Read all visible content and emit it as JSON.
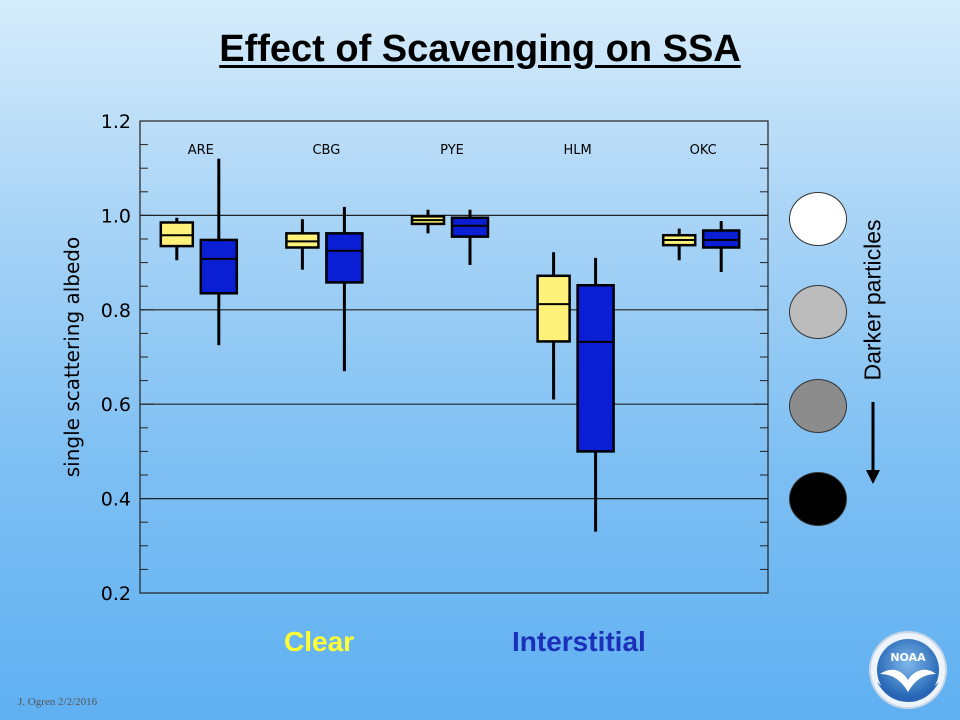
{
  "title": "Effect of Scavenging on SSA",
  "chart_data": {
    "type": "boxplot",
    "ylabel": "single scattering albedo",
    "xlabel": "",
    "ylim": [
      0.2,
      1.2
    ],
    "yticks": [
      "0.2",
      "0.4",
      "0.6",
      "0.8",
      "1.0",
      "1.2"
    ],
    "gridlines": [
      0.4,
      0.6,
      0.8,
      1.0
    ],
    "categories": [
      "ARE",
      "CBG",
      "PYE",
      "HLM",
      "OKC"
    ],
    "series": [
      {
        "name": "Clear",
        "color": "#fff27a",
        "boxes": [
          {
            "whisker_low": 0.905,
            "q1": 0.935,
            "median": 0.958,
            "q3": 0.985,
            "whisker_high": 0.995
          },
          {
            "whisker_low": 0.885,
            "q1": 0.932,
            "median": 0.945,
            "q3": 0.962,
            "whisker_high": 0.992
          },
          {
            "whisker_low": 0.962,
            "q1": 0.982,
            "median": 0.99,
            "q3": 0.998,
            "whisker_high": 1.012
          },
          {
            "whisker_low": 0.61,
            "q1": 0.733,
            "median": 0.812,
            "q3": 0.872,
            "whisker_high": 0.922
          },
          {
            "whisker_low": 0.905,
            "q1": 0.937,
            "median": 0.948,
            "q3": 0.958,
            "whisker_high": 0.972
          }
        ]
      },
      {
        "name": "Interstitial",
        "color": "#0a1fd4",
        "boxes": [
          {
            "whisker_low": 0.725,
            "q1": 0.835,
            "median": 0.908,
            "q3": 0.948,
            "whisker_high": 1.12
          },
          {
            "whisker_low": 0.67,
            "q1": 0.858,
            "median": 0.925,
            "q3": 0.962,
            "whisker_high": 1.018
          },
          {
            "whisker_low": 0.895,
            "q1": 0.955,
            "median": 0.978,
            "q3": 0.995,
            "whisker_high": 1.012
          },
          {
            "whisker_low": 0.33,
            "q1": 0.5,
            "median": 0.732,
            "q3": 0.852,
            "whisker_high": 0.91
          },
          {
            "whisker_low": 0.88,
            "q1": 0.932,
            "median": 0.948,
            "q3": 0.968,
            "whisker_high": 0.988
          }
        ]
      }
    ],
    "legend": {
      "placement": "bottom",
      "clear": "Clear",
      "interstitial": "Interstitial"
    }
  },
  "legend_colors": {
    "clear_text": "#ffff33",
    "interstitial_text": "#1b2fb8"
  },
  "darkness_scale": {
    "label": "Darker particles",
    "swatches": [
      "#ffffff",
      "#bcbcbc",
      "#8c8c8c",
      "#000000"
    ],
    "arrow_icon": "down-arrow-icon"
  },
  "footer": {
    "credit": "J. Ogren  2/2/2016"
  },
  "logo": {
    "text": "NOAA",
    "icon": "noaa-logo-icon"
  }
}
